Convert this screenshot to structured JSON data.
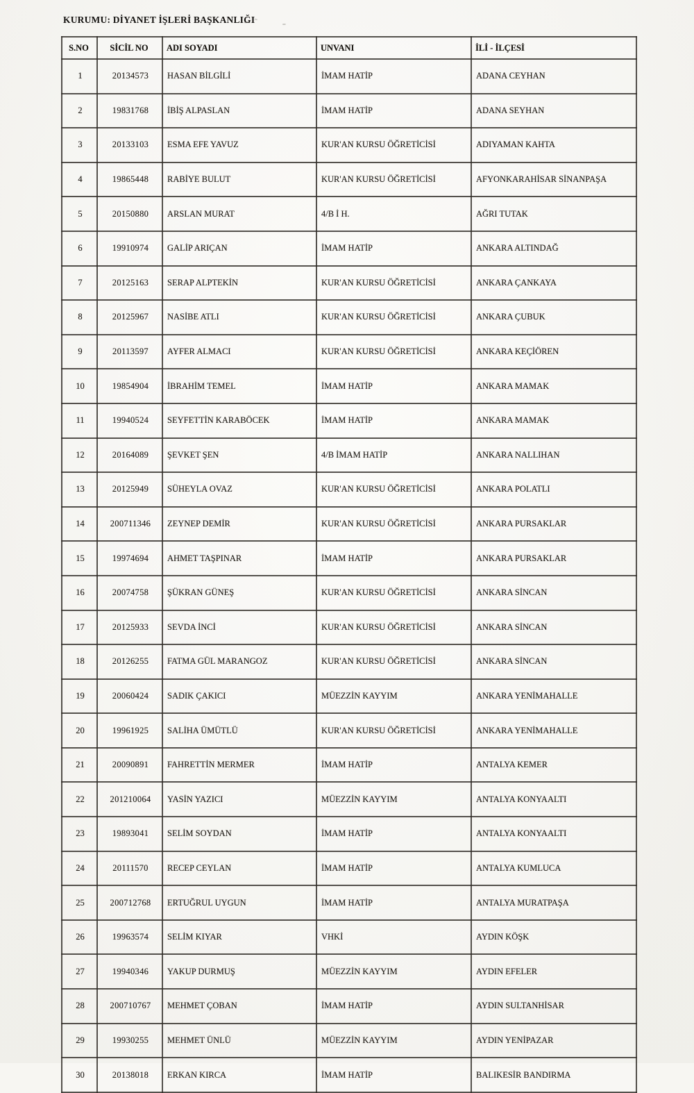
{
  "page": {
    "title": "KURUMU: DİYANET İŞLERİ BAŞKANLIĞI"
  },
  "colors": {
    "paper": "#f7f6f2",
    "ink": "#1e1b17",
    "border": "#302c27"
  },
  "table": {
    "columns": [
      "S.NO",
      "SİCİL NO",
      "ADI SOYADI",
      "UNVANI",
      "İLİ - İLÇESİ"
    ],
    "rows": [
      [
        "1",
        "20134573",
        "HASAN BİLGİLİ",
        "İMAM HATİP",
        "ADANA CEYHAN"
      ],
      [
        "2",
        "19831768",
        "İBİŞ ALPASLAN",
        "İMAM HATİP",
        "ADANA SEYHAN"
      ],
      [
        "3",
        "20133103",
        "ESMA EFE YAVUZ",
        "KUR'AN KURSU ÖĞRETİCİSİ",
        "ADIYAMAN KAHTA"
      ],
      [
        "4",
        "19865448",
        "RABİYE BULUT",
        "KUR'AN KURSU ÖĞRETİCİSİ",
        "AFYONKARAHİSAR SİNANPAŞA"
      ],
      [
        "5",
        "20150880",
        "ARSLAN MURAT",
        "4/B İ H.",
        "AĞRI TUTAK"
      ],
      [
        "6",
        "19910974",
        "GALİP ARIÇAN",
        "İMAM HATİP",
        "ANKARA ALTINDAĞ"
      ],
      [
        "7",
        "20125163",
        "SERAP ALPTEKİN",
        "KUR'AN KURSU ÖĞRETİCİSİ",
        "ANKARA ÇANKAYA"
      ],
      [
        "8",
        "20125967",
        "NASİBE ATLI",
        "KUR'AN KURSU ÖĞRETİCİSİ",
        "ANKARA ÇUBUK"
      ],
      [
        "9",
        "20113597",
        "AYFER ALMACI",
        "KUR'AN KURSU ÖĞRETİCİSİ",
        "ANKARA KEÇİÖREN"
      ],
      [
        "10",
        "19854904",
        "İBRAHİM TEMEL",
        "İMAM HATİP",
        "ANKARA MAMAK"
      ],
      [
        "11",
        "19940524",
        "SEYFETTİN KARABÖCEK",
        "İMAM HATİP",
        "ANKARA MAMAK"
      ],
      [
        "12",
        "20164089",
        "ŞEVKET ŞEN",
        "4/B İMAM HATİP",
        "ANKARA NALLIHAN"
      ],
      [
        "13",
        "20125949",
        "SÜHEYLA OVAZ",
        "KUR'AN KURSU ÖĞRETİCİSİ",
        "ANKARA POLATLI"
      ],
      [
        "14",
        "200711346",
        "ZEYNEP DEMİR",
        "KUR'AN KURSU ÖĞRETİCİSİ",
        "ANKARA PURSAKLAR"
      ],
      [
        "15",
        "19974694",
        "AHMET TAŞPINAR",
        "İMAM HATİP",
        "ANKARA PURSAKLAR"
      ],
      [
        "16",
        "20074758",
        "ŞÜKRAN GÜNEŞ",
        "KUR'AN KURSU ÖĞRETİCİSİ",
        "ANKARA SİNCAN"
      ],
      [
        "17",
        "20125933",
        "SEVDA İNCİ",
        "KUR'AN KURSU ÖĞRETİCİSİ",
        "ANKARA SİNCAN"
      ],
      [
        "18",
        "20126255",
        "FATMA GÜL MARANGOZ",
        "KUR'AN KURSU ÖĞRETİCİSİ",
        "ANKARA SİNCAN"
      ],
      [
        "19",
        "20060424",
        "SADIK ÇAKICI",
        "MÜEZZİN KAYYIM",
        "ANKARA YENİMAHALLE"
      ],
      [
        "20",
        "19961925",
        "SALİHA ÜMÜTLÜ",
        "KUR'AN KURSU ÖĞRETİCİSİ",
        "ANKARA YENİMAHALLE"
      ],
      [
        "21",
        "20090891",
        "FAHRETTİN MERMER",
        "İMAM HATİP",
        "ANTALYA KEMER"
      ],
      [
        "22",
        "201210064",
        "YASİN YAZICI",
        "MÜEZZİN KAYYIM",
        "ANTALYA KONYAALTI"
      ],
      [
        "23",
        "19893041",
        "SELİM SOYDAN",
        "İMAM HATİP",
        "ANTALYA KONYAALTI"
      ],
      [
        "24",
        "20111570",
        "RECEP CEYLAN",
        "İMAM HATİP",
        "ANTALYA KUMLUCA"
      ],
      [
        "25",
        "200712768",
        "ERTUĞRUL UYGUN",
        "İMAM HATİP",
        "ANTALYA MURATPAŞA"
      ],
      [
        "26",
        "19963574",
        "SELİM KIYAR",
        "VHKİ",
        "AYDIN KÖŞK"
      ],
      [
        "27",
        "19940346",
        "YAKUP DURMUŞ",
        "MÜEZZİN KAYYIM",
        "AYDIN EFELER"
      ],
      [
        "28",
        "200710767",
        "MEHMET ÇOBAN",
        "İMAM HATİP",
        "AYDIN SULTANHİSAR"
      ],
      [
        "29",
        "19930255",
        "MEHMET ÜNLÜ",
        "MÜEZZİN KAYYIM",
        "AYDIN YENİPAZAR"
      ],
      [
        "30",
        "20138018",
        "ERKAN KIRCA",
        "İMAM HATİP",
        "BALIKESİR BANDIRMA"
      ]
    ]
  }
}
